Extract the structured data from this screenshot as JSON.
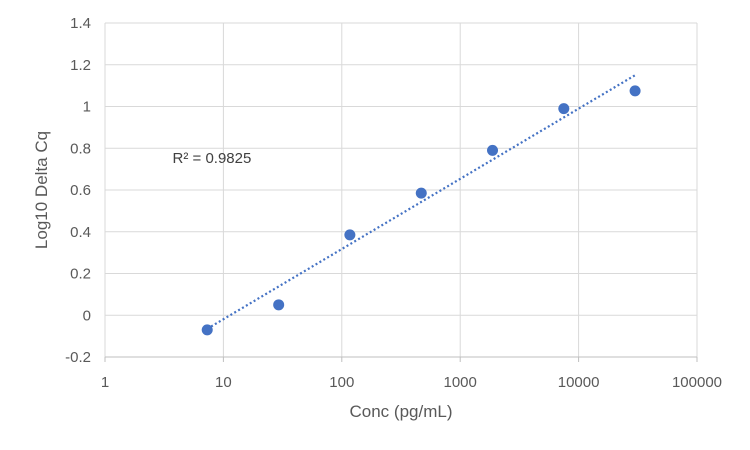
{
  "chart_data": {
    "type": "scatter",
    "xlabel": "Conc (pg/mL)",
    "ylabel": "Log10 Delta Cq",
    "x_scale": "log",
    "xlim": [
      1,
      100000
    ],
    "ylim": [
      -0.2,
      1.4
    ],
    "x_ticks": [
      1,
      10,
      100,
      1000,
      10000,
      100000
    ],
    "x_tick_labels": [
      "1",
      "10",
      "100",
      "1000",
      "10000",
      "100000"
    ],
    "y_ticks": [
      -0.2,
      0,
      0.2,
      0.4,
      0.6,
      0.8,
      1,
      1.2,
      1.4
    ],
    "y_tick_labels": [
      "-0.2",
      "0",
      "0.2",
      "0.4",
      "0.6",
      "0.8",
      "1",
      "1.2",
      "1.4"
    ],
    "grid": true,
    "legend": "none",
    "series": [
      {
        "x": [
          7.3,
          29.3,
          117,
          469,
          1875,
          7500,
          30000
        ],
        "y": [
          -0.07,
          0.05,
          0.385,
          0.585,
          0.79,
          0.99,
          1.075
        ],
        "color": "#4472C4",
        "marker": "circle"
      }
    ],
    "trendline": {
      "type": "log",
      "x_range": [
        7.3,
        30000
      ],
      "y_range": [
        -0.065,
        1.15
      ],
      "color": "#4472C4",
      "style": "dotted"
    },
    "annotations": [
      {
        "text": "R² = 0.9825",
        "x": 8,
        "y": 0.73
      }
    ]
  }
}
